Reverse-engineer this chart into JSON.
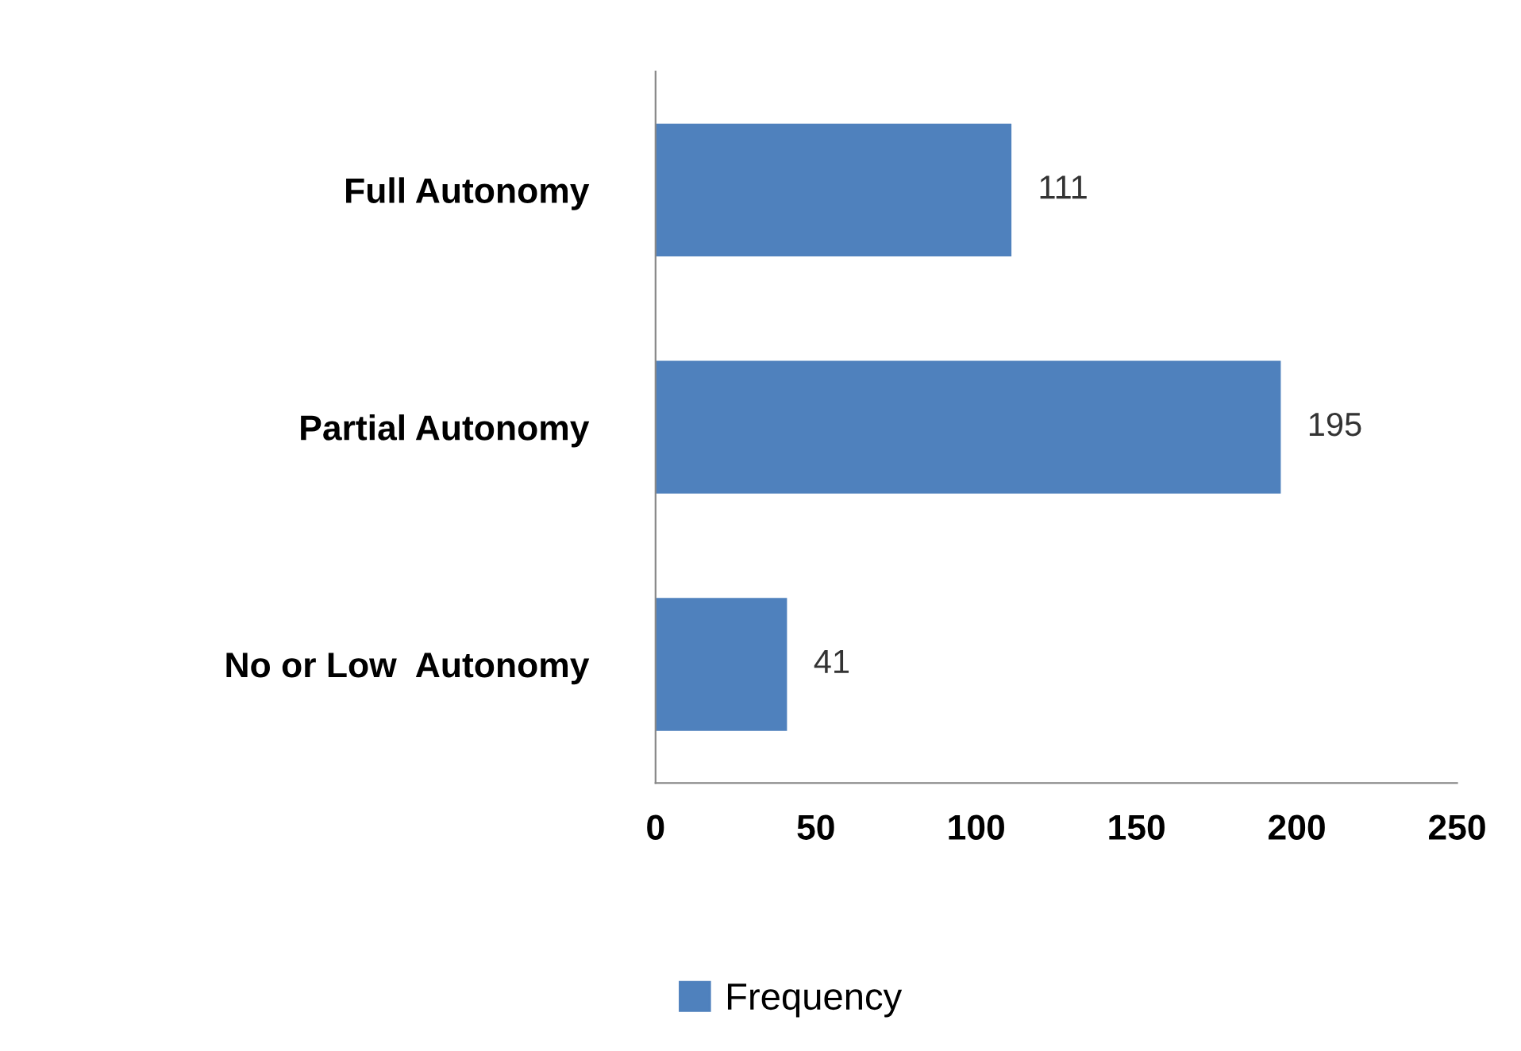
{
  "chart_data": {
    "type": "bar",
    "orientation": "horizontal",
    "categories": [
      "Full Autonomy",
      "Partial Autonomy",
      "No or Low  Autonomy"
    ],
    "series": [
      {
        "name": "Frequency",
        "color": "#4f81bd",
        "values": [
          111,
          195,
          41
        ]
      }
    ],
    "xlim": [
      0,
      250
    ],
    "xticks": [
      0,
      50,
      100,
      150,
      200,
      250
    ],
    "data_labels": true,
    "legend": "bottom",
    "grid": false
  }
}
